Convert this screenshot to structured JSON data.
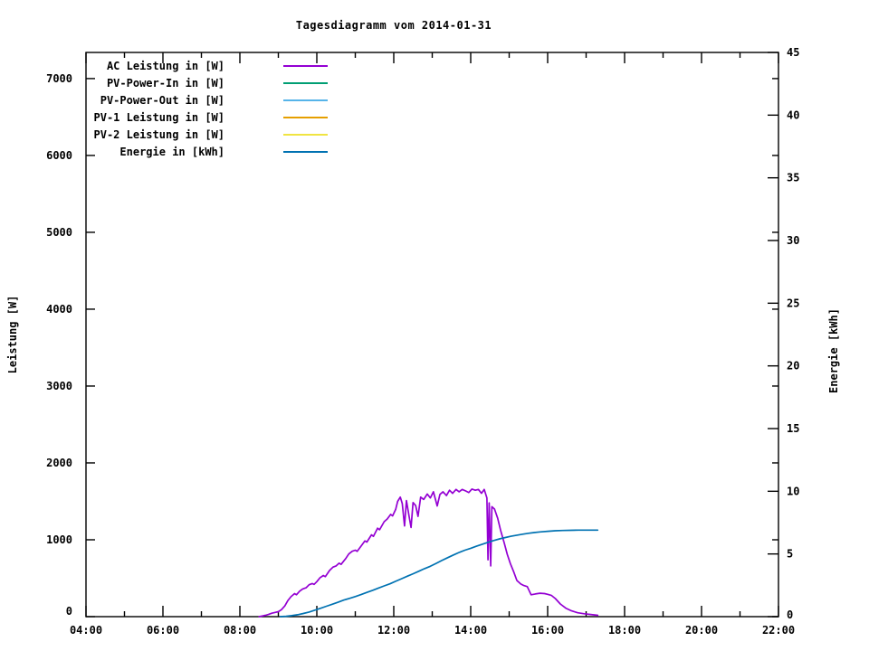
{
  "page_title": "Tagesdiagramm vom 2014-01-31",
  "colors": {
    "background": "#ffffff",
    "text": "#000000",
    "border": "#000000",
    "ac_power": "#9400d3",
    "pv_power_in": "#009e73",
    "pv_power_out": "#56b4e9",
    "pv1_power": "#e69f00",
    "pv2_power": "#f0e442",
    "energy": "#0072b2"
  },
  "chart_data": {
    "type": "line",
    "title": "Tagesdiagramm vom 2014-01-31",
    "grid": false,
    "x_axis": {
      "unit": "time of day",
      "range_hours": [
        4,
        22
      ],
      "major_tick_hours": 2,
      "minor_tick_hours": 1,
      "tick_labels": [
        "04:00",
        "06:00",
        "08:00",
        "10:00",
        "12:00",
        "14:00",
        "16:00",
        "18:00",
        "20:00",
        "22:00"
      ]
    },
    "y_axis_left": {
      "label": "Leistung [W]",
      "range": [
        0,
        7340
      ],
      "tick_step": 1000,
      "tick_labels": [
        "0",
        "1000",
        "2000",
        "3000",
        "4000",
        "5000",
        "6000",
        "7000"
      ]
    },
    "y_axis_right": {
      "label": "Energie [kWh]",
      "range": [
        0,
        45
      ],
      "tick_step": 5,
      "tick_labels": [
        "0",
        "5",
        "10",
        "15",
        "20",
        "25",
        "30",
        "35",
        "40",
        "45"
      ]
    },
    "legend": {
      "position": "top-left-inside",
      "entries": [
        {
          "label": "AC Leistung in [W]",
          "color": "#9400d3"
        },
        {
          "label": "PV-Power-In in [W]",
          "color": "#009e73"
        },
        {
          "label": "PV-Power-Out in [W]",
          "color": "#56b4e9"
        },
        {
          "label": "PV-1 Leistung in [W]",
          "color": "#e69f00"
        },
        {
          "label": "PV-2 Leistung in [W]",
          "color": "#f0e442"
        },
        {
          "label": "Energie in [kWh]",
          "color": "#0072b2"
        }
      ]
    },
    "series": [
      {
        "name": "AC Leistung in [W]",
        "axis": "left",
        "color": "#9400d3",
        "points": [
          [
            8.5,
            0
          ],
          [
            8.58,
            8
          ],
          [
            8.67,
            18
          ],
          [
            8.75,
            30
          ],
          [
            8.83,
            45
          ],
          [
            8.92,
            55
          ],
          [
            9.0,
            65
          ],
          [
            9.08,
            90
          ],
          [
            9.17,
            140
          ],
          [
            9.25,
            210
          ],
          [
            9.33,
            260
          ],
          [
            9.42,
            300
          ],
          [
            9.47,
            285
          ],
          [
            9.55,
            330
          ],
          [
            9.63,
            360
          ],
          [
            9.72,
            375
          ],
          [
            9.8,
            415
          ],
          [
            9.88,
            430
          ],
          [
            9.93,
            420
          ],
          [
            10.0,
            455
          ],
          [
            10.08,
            505
          ],
          [
            10.17,
            535
          ],
          [
            10.22,
            520
          ],
          [
            10.33,
            600
          ],
          [
            10.42,
            645
          ],
          [
            10.5,
            660
          ],
          [
            10.58,
            695
          ],
          [
            10.63,
            680
          ],
          [
            10.75,
            755
          ],
          [
            10.83,
            815
          ],
          [
            10.92,
            850
          ],
          [
            11.0,
            865
          ],
          [
            11.05,
            850
          ],
          [
            11.17,
            930
          ],
          [
            11.25,
            985
          ],
          [
            11.3,
            970
          ],
          [
            11.42,
            1065
          ],
          [
            11.47,
            1045
          ],
          [
            11.58,
            1150
          ],
          [
            11.63,
            1130
          ],
          [
            11.75,
            1235
          ],
          [
            11.83,
            1270
          ],
          [
            11.92,
            1330
          ],
          [
            11.97,
            1310
          ],
          [
            12.05,
            1395
          ],
          [
            12.1,
            1500
          ],
          [
            12.17,
            1555
          ],
          [
            12.22,
            1470
          ],
          [
            12.28,
            1180
          ],
          [
            12.33,
            1510
          ],
          [
            12.4,
            1300
          ],
          [
            12.45,
            1160
          ],
          [
            12.5,
            1485
          ],
          [
            12.57,
            1445
          ],
          [
            12.63,
            1305
          ],
          [
            12.7,
            1555
          ],
          [
            12.78,
            1525
          ],
          [
            12.87,
            1595
          ],
          [
            12.95,
            1545
          ],
          [
            13.03,
            1625
          ],
          [
            13.13,
            1440
          ],
          [
            13.2,
            1590
          ],
          [
            13.28,
            1625
          ],
          [
            13.37,
            1575
          ],
          [
            13.45,
            1645
          ],
          [
            13.53,
            1605
          ],
          [
            13.62,
            1655
          ],
          [
            13.7,
            1625
          ],
          [
            13.78,
            1655
          ],
          [
            13.87,
            1635
          ],
          [
            13.95,
            1615
          ],
          [
            14.03,
            1660
          ],
          [
            14.12,
            1645
          ],
          [
            14.2,
            1655
          ],
          [
            14.28,
            1605
          ],
          [
            14.35,
            1655
          ],
          [
            14.42,
            1545
          ],
          [
            14.45,
            740
          ],
          [
            14.48,
            1480
          ],
          [
            14.52,
            660
          ],
          [
            14.55,
            1430
          ],
          [
            14.62,
            1400
          ],
          [
            14.7,
            1280
          ],
          [
            14.78,
            1120
          ],
          [
            14.87,
            960
          ],
          [
            14.95,
            810
          ],
          [
            15.03,
            690
          ],
          [
            15.12,
            580
          ],
          [
            15.2,
            470
          ],
          [
            15.3,
            425
          ],
          [
            15.38,
            405
          ],
          [
            15.47,
            390
          ],
          [
            15.57,
            285
          ],
          [
            15.68,
            295
          ],
          [
            15.8,
            305
          ],
          [
            15.92,
            300
          ],
          [
            16.0,
            290
          ],
          [
            16.1,
            275
          ],
          [
            16.2,
            235
          ],
          [
            16.33,
            165
          ],
          [
            16.47,
            110
          ],
          [
            16.62,
            75
          ],
          [
            16.78,
            50
          ],
          [
            16.95,
            38
          ],
          [
            17.12,
            28
          ],
          [
            17.3,
            18
          ]
        ]
      },
      {
        "name": "Energie in [kWh]",
        "axis": "right",
        "color": "#0072b2",
        "points": [
          [
            9.05,
            0.0
          ],
          [
            9.2,
            0.03
          ],
          [
            9.35,
            0.08
          ],
          [
            9.5,
            0.15
          ],
          [
            9.65,
            0.25
          ],
          [
            9.8,
            0.37
          ],
          [
            9.95,
            0.52
          ],
          [
            10.1,
            0.67
          ],
          [
            10.25,
            0.83
          ],
          [
            10.4,
            0.99
          ],
          [
            10.55,
            1.15
          ],
          [
            10.7,
            1.32
          ],
          [
            10.85,
            1.46
          ],
          [
            11.0,
            1.6
          ],
          [
            11.15,
            1.76
          ],
          [
            11.3,
            1.93
          ],
          [
            11.45,
            2.1
          ],
          [
            11.6,
            2.28
          ],
          [
            11.75,
            2.45
          ],
          [
            11.9,
            2.62
          ],
          [
            12.05,
            2.82
          ],
          [
            12.2,
            3.02
          ],
          [
            12.35,
            3.22
          ],
          [
            12.5,
            3.42
          ],
          [
            12.65,
            3.62
          ],
          [
            12.8,
            3.83
          ],
          [
            12.95,
            4.02
          ],
          [
            13.1,
            4.25
          ],
          [
            13.25,
            4.48
          ],
          [
            13.4,
            4.7
          ],
          [
            13.55,
            4.92
          ],
          [
            13.7,
            5.12
          ],
          [
            13.85,
            5.3
          ],
          [
            14.0,
            5.45
          ],
          [
            14.15,
            5.62
          ],
          [
            14.3,
            5.78
          ],
          [
            14.45,
            5.93
          ],
          [
            14.6,
            6.07
          ],
          [
            14.75,
            6.2
          ],
          [
            14.9,
            6.31
          ],
          [
            15.05,
            6.41
          ],
          [
            15.2,
            6.5
          ],
          [
            15.35,
            6.58
          ],
          [
            15.5,
            6.65
          ],
          [
            15.65,
            6.71
          ],
          [
            15.8,
            6.76
          ],
          [
            16.0,
            6.81
          ],
          [
            16.2,
            6.85
          ],
          [
            16.4,
            6.87
          ],
          [
            16.6,
            6.89
          ],
          [
            16.8,
            6.9
          ],
          [
            17.0,
            6.9
          ],
          [
            17.3,
            6.9
          ]
        ]
      }
    ]
  }
}
